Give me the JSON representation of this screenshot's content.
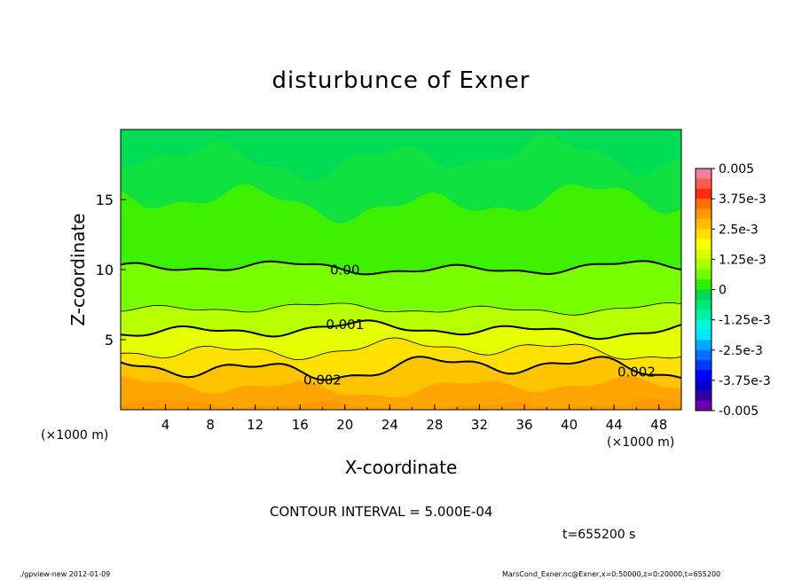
{
  "chart_data": {
    "type": "heatmap",
    "title": "disturbunce of Exner",
    "xlabel": "X-coordinate",
    "ylabel": "Z-coordinate",
    "x_unit": "(×1000 m)",
    "y_unit": "(×1000 m)",
    "xlim": [
      0,
      50
    ],
    "ylim": [
      0,
      20
    ],
    "x_ticks": [
      "4",
      "8",
      "12",
      "16",
      "20",
      "24",
      "28",
      "32",
      "36",
      "40",
      "44",
      "48"
    ],
    "y_ticks": [
      "5",
      "10",
      "15"
    ],
    "contour_labels": [
      "0.00",
      "0.001",
      "0.002",
      "0.002"
    ],
    "contour_interval_text": "CONTOUR INTERVAL = 5.000E-04",
    "time_text": "t=655200 s",
    "colorbar": {
      "labels": [
        "0.005",
        "3.75e-3",
        "2.5e-3",
        "1.25e-3",
        "0",
        "-1.25e-3",
        "-2.5e-3",
        "-3.75e-3",
        "-0.005"
      ],
      "range": [
        -0.005,
        0.005
      ],
      "colors": [
        "#f07fa0",
        "#ff5a4a",
        "#ff2a10",
        "#ff6e00",
        "#ff9a00",
        "#ffbf00",
        "#ffdf00",
        "#ffff00",
        "#d8ff00",
        "#a8ff00",
        "#6eff00",
        "#30ee00",
        "#00d850",
        "#00e878",
        "#00f0a8",
        "#00f8d8",
        "#00e8ff",
        "#00a8ff",
        "#0070ff",
        "#0038ff",
        "#0000ff",
        "#0000c8",
        "#3000a0",
        "#6a00b0"
      ]
    },
    "levels_from_bottom": [
      0.003,
      0.0025,
      0.002,
      0.0015,
      0.001,
      0.0005,
      0.0,
      -0.0004,
      -0.0006
    ],
    "level_colors": [
      "#ffa400",
      "#ffc400",
      "#ffe000",
      "#e6ff00",
      "#b8ff00",
      "#7aff00",
      "#3cf000",
      "#10e040",
      "#00dd55"
    ]
  },
  "footer": {
    "left": "./gpview-new   2012-01-09",
    "right": "MarsCond_Exner.nc@Exner,x=0:50000,z=0:20000,t=655200"
  }
}
